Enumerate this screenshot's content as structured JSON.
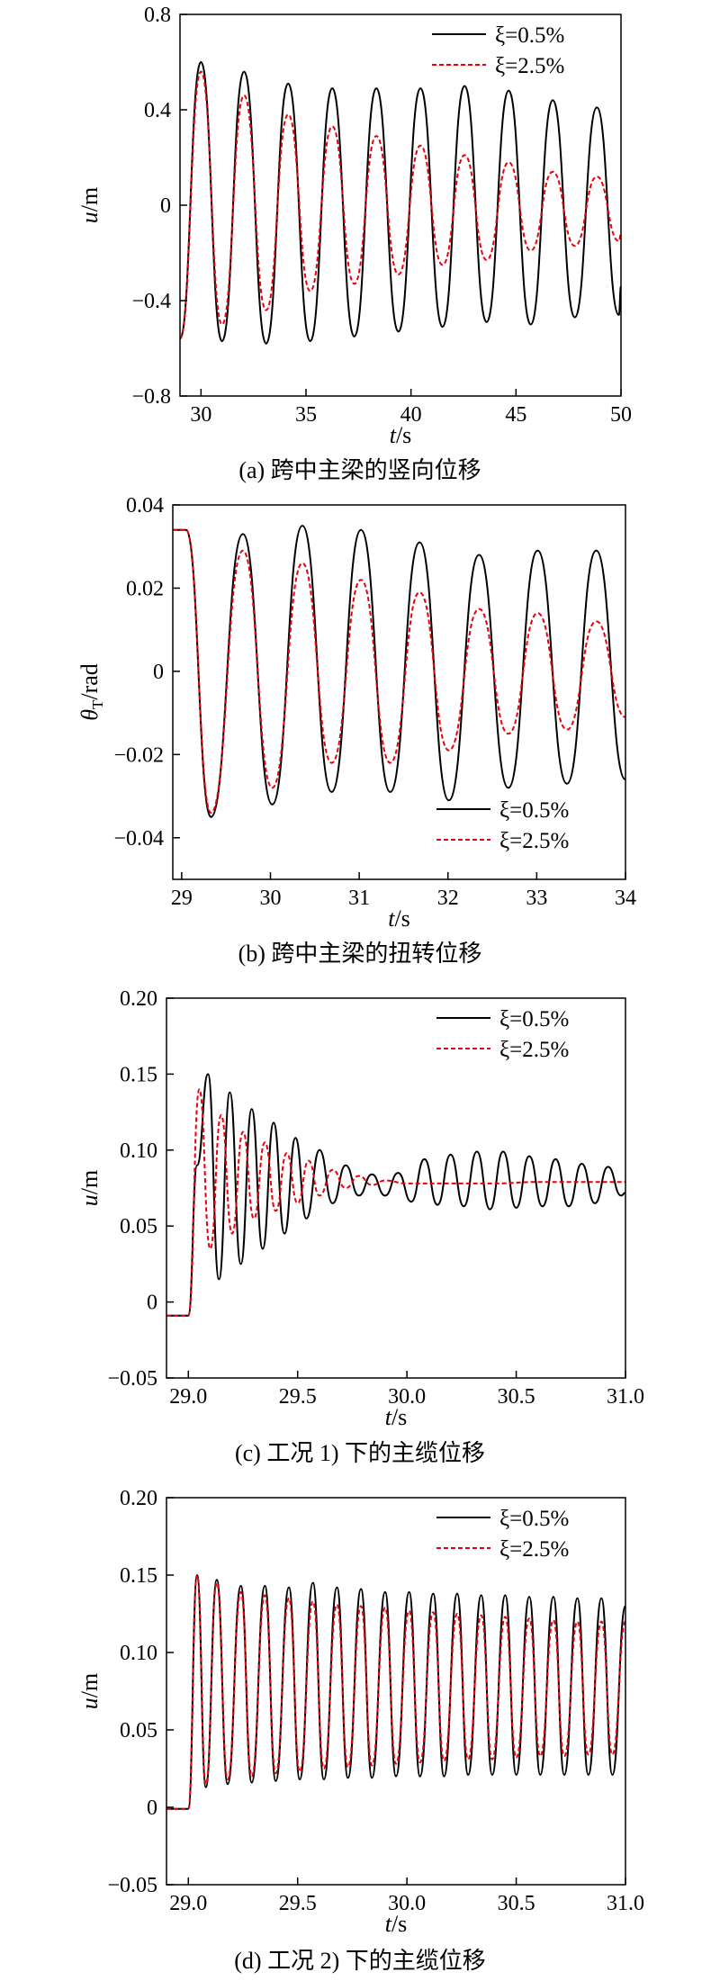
{
  "charts": [
    {
      "caption": "(a) 跨中主梁的竖向位移",
      "chart_data": {
        "type": "line",
        "xlabel_var": "t",
        "xlabel_unit": "/s",
        "ylabel_var": "u",
        "ylabel_sub": "",
        "ylabel_unit": "/m",
        "xlim": [
          29,
          50
        ],
        "ylim": [
          -0.8,
          0.8
        ],
        "xticks": [
          30,
          35,
          40,
          45,
          50
        ],
        "xtick_labels": [
          "30",
          "35",
          "40",
          "45",
          "50"
        ],
        "yticks": [
          -0.8,
          -0.4,
          0,
          0.4,
          0.8
        ],
        "ytick_labels": [
          "−0.8",
          "−0.4",
          "0",
          "0.4",
          "0.8"
        ],
        "legend_position": "top-right",
        "series": [
          {
            "name": "ξ=0.5%",
            "color": "#000000",
            "dashed": false,
            "x": [
              29.0,
              30.0,
              31.0,
              32.05,
              33.1,
              34.15,
              35.2,
              36.25,
              37.3,
              38.35,
              39.4,
              40.45,
              41.5,
              42.55,
              43.6,
              44.65,
              45.7,
              46.75,
              47.8,
              48.85,
              49.9,
              50.0
            ],
            "y": [
              -0.56,
              0.6,
              -0.57,
              0.56,
              -0.58,
              0.51,
              -0.57,
              0.49,
              -0.55,
              0.49,
              -0.53,
              0.49,
              -0.51,
              0.5,
              -0.49,
              0.48,
              -0.5,
              0.44,
              -0.47,
              0.41,
              -0.46,
              -0.34
            ]
          },
          {
            "name": "ξ=2.5%",
            "color": "#e8000b",
            "dashed": true,
            "x": [
              29.0,
              30.0,
              31.0,
              32.05,
              33.1,
              34.15,
              35.2,
              36.25,
              37.3,
              38.35,
              39.4,
              40.45,
              41.5,
              42.55,
              43.6,
              44.65,
              45.7,
              46.75,
              47.8,
              48.85,
              49.9,
              50.0
            ],
            "y": [
              -0.56,
              0.56,
              -0.5,
              0.46,
              -0.44,
              0.38,
              -0.36,
              0.33,
              -0.33,
              0.29,
              -0.29,
              0.25,
              -0.25,
              0.21,
              -0.23,
              0.18,
              -0.19,
              0.14,
              -0.17,
              0.12,
              -0.15,
              -0.12
            ]
          }
        ]
      }
    },
    {
      "caption": "(b) 跨中主梁的扭转位移",
      "chart_data": {
        "type": "line",
        "xlabel_var": "t",
        "xlabel_unit": "/s",
        "ylabel_var": "θ",
        "ylabel_sub": "T",
        "ylabel_unit": "/rad",
        "xlim": [
          28.9,
          34
        ],
        "ylim": [
          -0.05,
          0.04
        ],
        "xticks": [
          29,
          30,
          31,
          32,
          33,
          34
        ],
        "xtick_labels": [
          "29",
          "30",
          "31",
          "32",
          "33",
          "34"
        ],
        "yticks": [
          -0.04,
          -0.02,
          0,
          0.02,
          0.04
        ],
        "ytick_labels": [
          "−0.04",
          "−0.02",
          "0",
          "0.02",
          "0.04"
        ],
        "legend_position": "bottom-right",
        "series": [
          {
            "name": "ξ=0.5%",
            "color": "#000000",
            "dashed": false,
            "x": [
              28.9,
              29.05,
              29.33,
              29.69,
              30.02,
              30.36,
              30.69,
              31.02,
              31.35,
              31.68,
              32.01,
              32.35,
              32.68,
              33.01,
              33.34,
              33.67,
              34.0
            ],
            "y": [
              0.034,
              0.034,
              -0.035,
              0.033,
              -0.032,
              0.035,
              -0.029,
              0.034,
              -0.029,
              0.031,
              -0.031,
              0.028,
              -0.028,
              0.029,
              -0.027,
              0.029,
              -0.026
            ]
          },
          {
            "name": "ξ=2.5%",
            "color": "#e8000b",
            "dashed": true,
            "x": [
              28.9,
              29.05,
              29.33,
              29.69,
              30.02,
              30.36,
              30.69,
              31.02,
              31.35,
              31.68,
              32.01,
              32.35,
              32.68,
              33.01,
              33.34,
              33.67,
              34.0
            ],
            "y": [
              0.034,
              0.034,
              -0.034,
              0.029,
              -0.028,
              0.026,
              -0.022,
              0.022,
              -0.022,
              0.019,
              -0.019,
              0.015,
              -0.015,
              0.014,
              -0.014,
              0.012,
              -0.011
            ]
          }
        ]
      }
    },
    {
      "caption": "(c) 工况 1) 下的主缆位移",
      "chart_data": {
        "type": "line",
        "xlabel_var": "t",
        "xlabel_unit": "/s",
        "ylabel_var": "u",
        "ylabel_sub": "",
        "ylabel_unit": "/m",
        "xlim": [
          28.9,
          31.0
        ],
        "ylim": [
          -0.05,
          0.2
        ],
        "xticks": [
          29.0,
          29.5,
          30.0,
          30.5,
          31.0
        ],
        "xtick_labels": [
          "29.0",
          "29.5",
          "30.0",
          "30.5",
          "31.0"
        ],
        "yticks": [
          -0.05,
          0,
          0.05,
          0.1,
          0.15,
          0.2
        ],
        "ytick_labels": [
          "−0.05",
          "0",
          "0.05",
          "0.10",
          "0.15",
          "0.20"
        ],
        "legend_position": "top-right",
        "series": [
          {
            "name": "ξ=0.5%",
            "color": "#000000",
            "dashed": false,
            "x": [
              28.9,
              29.0,
              29.04,
              29.09,
              29.14,
              29.19,
              29.24,
              29.29,
              29.34,
              29.39,
              29.44,
              29.49,
              29.54,
              29.6,
              29.66,
              29.72,
              29.78,
              29.84,
              29.9,
              29.96,
              30.02,
              30.08,
              30.14,
              30.2,
              30.26,
              30.32,
              30.38,
              30.44,
              30.5,
              30.56,
              30.62,
              30.68,
              30.74,
              30.8,
              30.86,
              30.92,
              30.98,
              31.0
            ],
            "y": [
              -0.009,
              -0.009,
              0.09,
              0.15,
              0.015,
              0.138,
              0.025,
              0.127,
              0.035,
              0.118,
              0.045,
              0.108,
              0.055,
              0.1,
              0.065,
              0.09,
              0.07,
              0.084,
              0.07,
              0.085,
              0.066,
              0.094,
              0.064,
              0.097,
              0.063,
              0.099,
              0.061,
              0.099,
              0.062,
              0.096,
              0.063,
              0.094,
              0.063,
              0.091,
              0.065,
              0.089,
              0.07,
              0.072
            ]
          },
          {
            "name": "ξ=2.5%",
            "color": "#e8000b",
            "dashed": true,
            "x": [
              28.9,
              29.0,
              29.05,
              29.1,
              29.15,
              29.2,
              29.25,
              29.3,
              29.35,
              29.4,
              29.45,
              29.5,
              29.55,
              29.6,
              29.66,
              29.72,
              29.78,
              29.84,
              29.9,
              30.0,
              30.2,
              30.4,
              30.6,
              30.8,
              31.0
            ],
            "y": [
              -0.009,
              -0.009,
              0.14,
              0.035,
              0.123,
              0.045,
              0.112,
              0.055,
              0.105,
              0.06,
              0.098,
              0.065,
              0.093,
              0.07,
              0.087,
              0.075,
              0.083,
              0.077,
              0.08,
              0.078,
              0.078,
              0.078,
              0.079,
              0.079,
              0.079
            ]
          }
        ]
      }
    },
    {
      "caption": "(d) 工况 2) 下的主缆位移",
      "chart_data": {
        "type": "line",
        "xlabel_var": "t",
        "xlabel_unit": "/s",
        "ylabel_var": "u",
        "ylabel_sub": "",
        "ylabel_unit": "/m",
        "xlim": [
          28.9,
          31.0
        ],
        "ylim": [
          -0.05,
          0.2
        ],
        "xticks": [
          29.0,
          29.5,
          30.0,
          30.5,
          31.0
        ],
        "xtick_labels": [
          "29.0",
          "29.5",
          "30.0",
          "30.5",
          "31.0"
        ],
        "yticks": [
          -0.05,
          0,
          0.05,
          0.1,
          0.15,
          0.2
        ],
        "ytick_labels": [
          "−0.05",
          "0",
          "0.05",
          "0.10",
          "0.15",
          "0.20"
        ],
        "legend_position": "top-right",
        "series": [
          {
            "name": "ξ=0.5%",
            "color": "#000000",
            "dashed": false,
            "x": [
              28.9,
              29.0,
              29.04,
              29.08,
              29.13,
              29.18,
              29.24,
              29.29,
              29.35,
              29.4,
              29.46,
              29.51,
              29.57,
              29.62,
              29.68,
              29.73,
              29.79,
              29.84,
              29.9,
              29.95,
              30.01,
              30.06,
              30.12,
              30.17,
              30.23,
              30.28,
              30.34,
              30.39,
              30.45,
              30.5,
              30.56,
              30.61,
              30.67,
              30.72,
              30.78,
              30.83,
              30.89,
              30.94,
              31.0
            ],
            "y": [
              -0.001,
              -0.001,
              0.15,
              0.013,
              0.147,
              0.015,
              0.143,
              0.016,
              0.143,
              0.017,
              0.142,
              0.018,
              0.145,
              0.018,
              0.142,
              0.019,
              0.141,
              0.019,
              0.139,
              0.02,
              0.139,
              0.02,
              0.138,
              0.02,
              0.138,
              0.021,
              0.137,
              0.021,
              0.137,
              0.021,
              0.136,
              0.021,
              0.136,
              0.021,
              0.135,
              0.021,
              0.135,
              0.021,
              0.13
            ]
          },
          {
            "name": "ξ=2.5%",
            "color": "#e8000b",
            "dashed": true,
            "x": [
              28.9,
              29.0,
              29.04,
              29.08,
              29.13,
              29.18,
              29.24,
              29.29,
              29.35,
              29.4,
              29.46,
              29.51,
              29.57,
              29.62,
              29.68,
              29.73,
              29.79,
              29.84,
              29.9,
              29.95,
              30.01,
              30.06,
              30.12,
              30.17,
              30.23,
              30.28,
              30.34,
              30.39,
              30.45,
              30.5,
              30.56,
              30.61,
              30.67,
              30.72,
              30.78,
              30.83,
              30.89,
              30.94,
              31.0
            ],
            "y": [
              -0.001,
              -0.001,
              0.15,
              0.015,
              0.145,
              0.018,
              0.139,
              0.02,
              0.137,
              0.022,
              0.135,
              0.023,
              0.133,
              0.025,
              0.131,
              0.026,
              0.13,
              0.027,
              0.129,
              0.028,
              0.127,
              0.029,
              0.126,
              0.03,
              0.125,
              0.031,
              0.124,
              0.031,
              0.123,
              0.032,
              0.122,
              0.033,
              0.121,
              0.033,
              0.12,
              0.034,
              0.12,
              0.034,
              0.12
            ]
          }
        ]
      }
    }
  ]
}
